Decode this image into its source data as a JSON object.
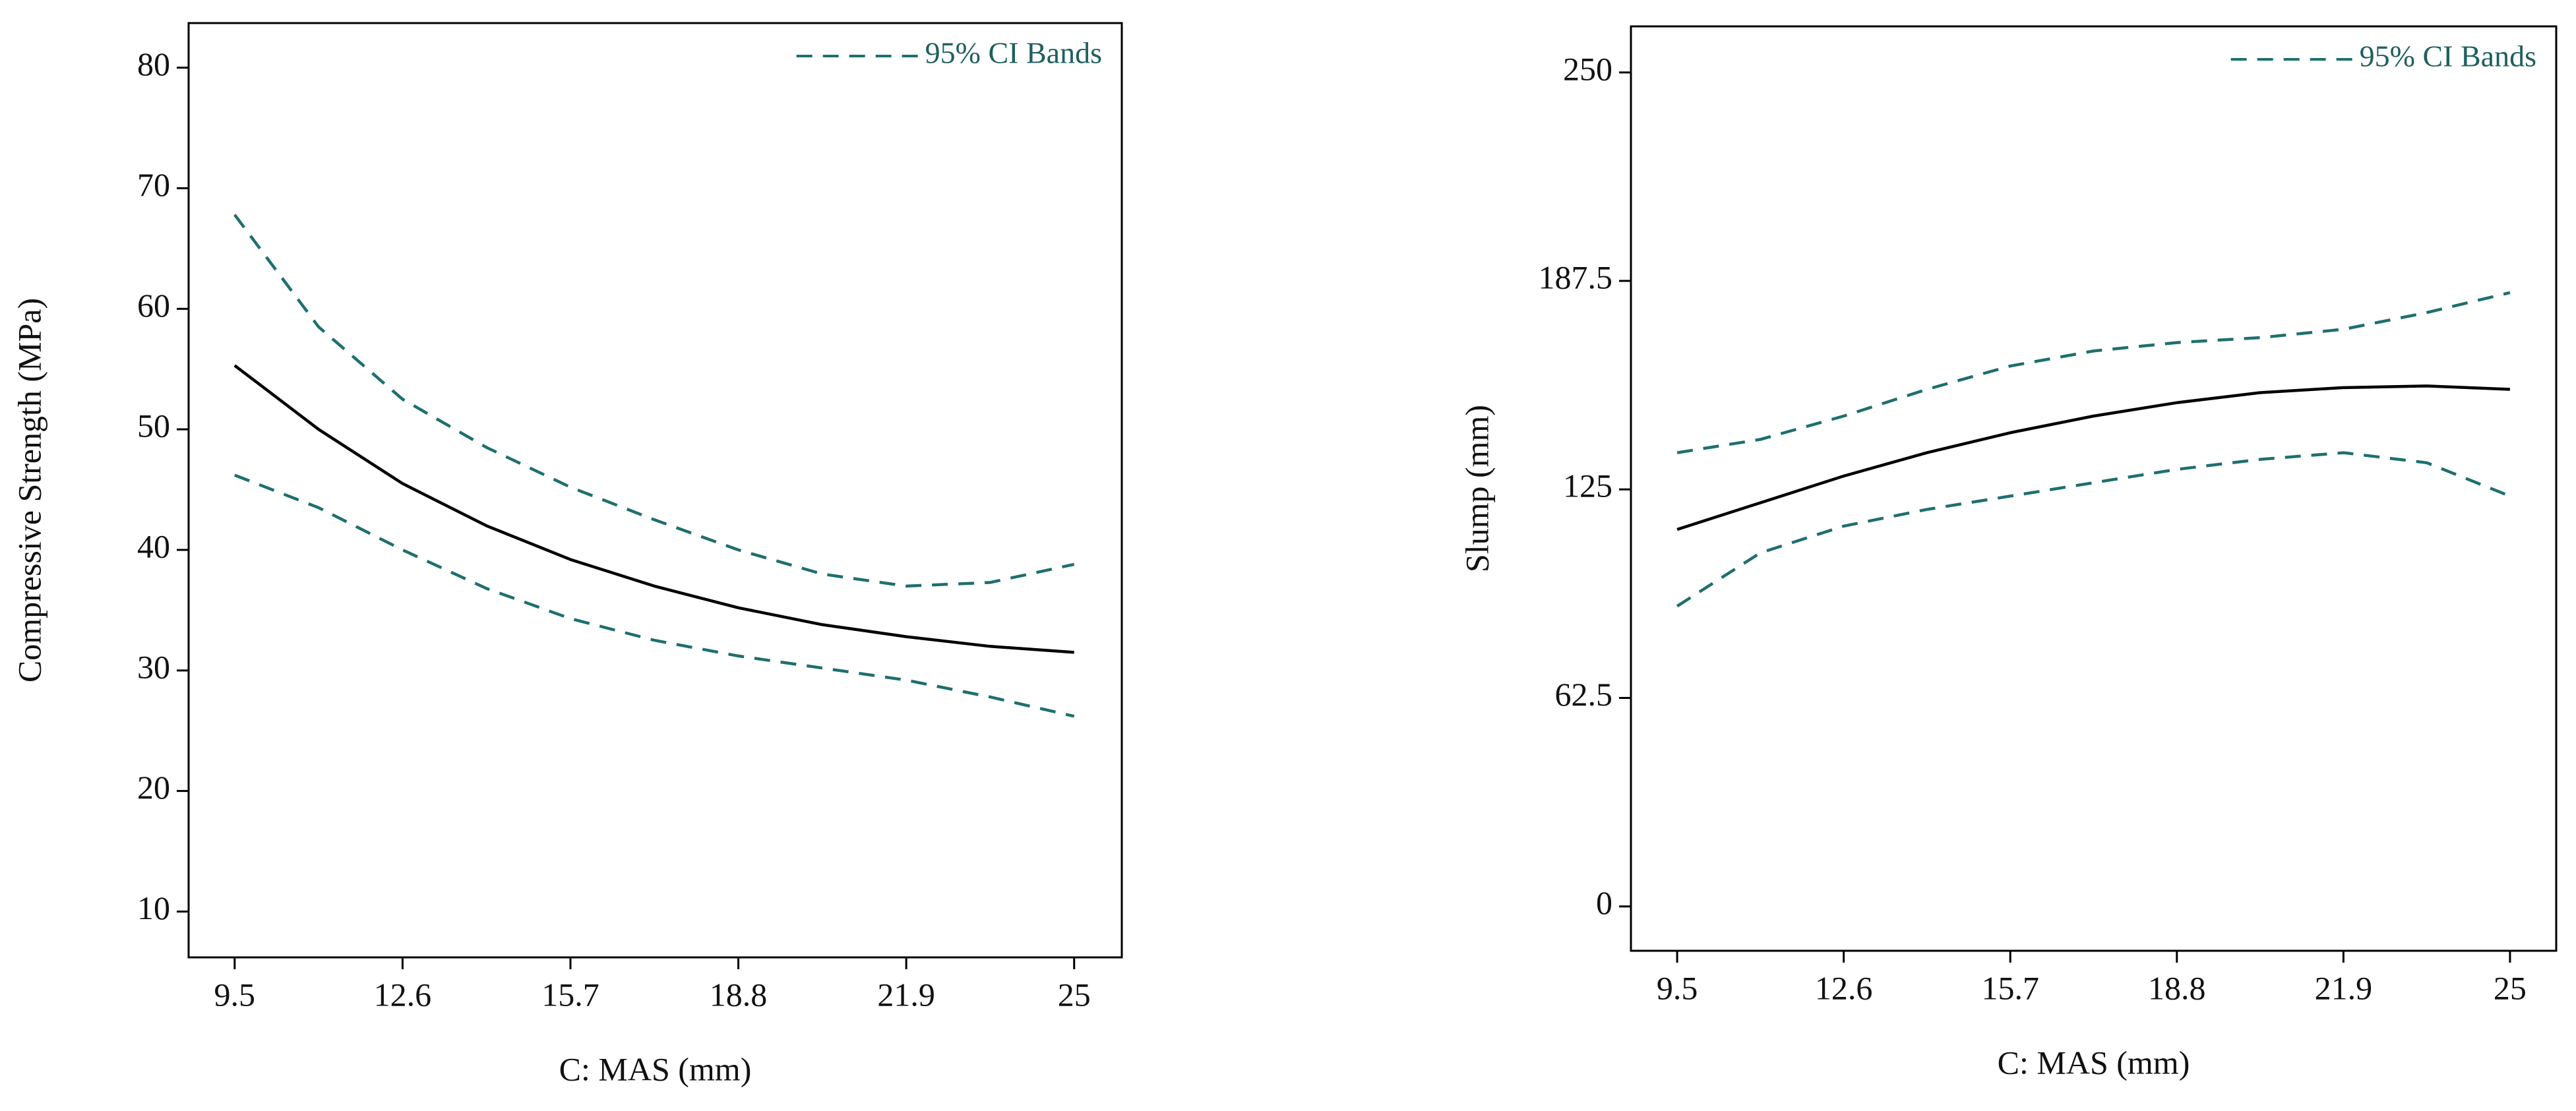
{
  "chart_data": [
    {
      "type": "line",
      "x_label": "C: MAS (mm)",
      "y_label": "Compressive Strength (MPa)",
      "x": [
        9.5,
        11.05,
        12.6,
        14.15,
        15.7,
        17.25,
        18.8,
        20.35,
        21.9,
        23.45,
        25
      ],
      "xlim": [
        8.65,
        25.88
      ],
      "xticks": [
        9.5,
        12.6,
        15.7,
        18.8,
        21.9,
        25
      ],
      "ylim": [
        6.2,
        83.7
      ],
      "yticks": [
        10,
        20,
        30,
        40,
        50,
        60,
        70,
        80
      ],
      "legend": "upper right",
      "series": [
        {
          "color": "#000000",
          "values": [
            55.3,
            50,
            45.5,
            42,
            39.2,
            37,
            35.2,
            33.8,
            32.8,
            32,
            31.5
          ]
        },
        {
          "name": "95% CI Bands",
          "color": "#1f6f6f",
          "dashed": true,
          "values": [
            67.8,
            58.5,
            52.5,
            48.5,
            45.2,
            42.5,
            40,
            38,
            37,
            37.3,
            38.8
          ]
        },
        {
          "color": "#1f6f6f",
          "dashed": true,
          "values": [
            46.2,
            43.5,
            40,
            36.8,
            34.3,
            32.5,
            31.2,
            30.2,
            29.2,
            27.8,
            26.2
          ]
        }
      ]
    },
    {
      "type": "line",
      "x_label": "C: MAS (mm)",
      "y_label": "Slump (mm)",
      "x": [
        9.5,
        11.05,
        12.6,
        14.15,
        15.7,
        17.25,
        18.8,
        20.35,
        21.9,
        23.45,
        25
      ],
      "xlim": [
        8.64,
        25.86
      ],
      "xticks": [
        9.5,
        12.6,
        15.7,
        18.8,
        21.9,
        25
      ],
      "ylim": [
        -13.3,
        263.8
      ],
      "yticks": [
        0,
        62.5,
        125,
        187.5,
        250
      ],
      "legend": "upper right",
      "series": [
        {
          "color": "#000000",
          "values": [
            113,
            121,
            129,
            136,
            142,
            147,
            151,
            154,
            155.5,
            156,
            155
          ]
        },
        {
          "name": "95% CI Bands",
          "color": "#1f6f6f",
          "dashed": true,
          "values": [
            136,
            140,
            147,
            155,
            162,
            166.5,
            169,
            170.5,
            173,
            178,
            184
          ]
        },
        {
          "color": "#1f6f6f",
          "dashed": true,
          "values": [
            90,
            106,
            114,
            119,
            123,
            127,
            131,
            134,
            136,
            133,
            123
          ]
        }
      ]
    }
  ]
}
